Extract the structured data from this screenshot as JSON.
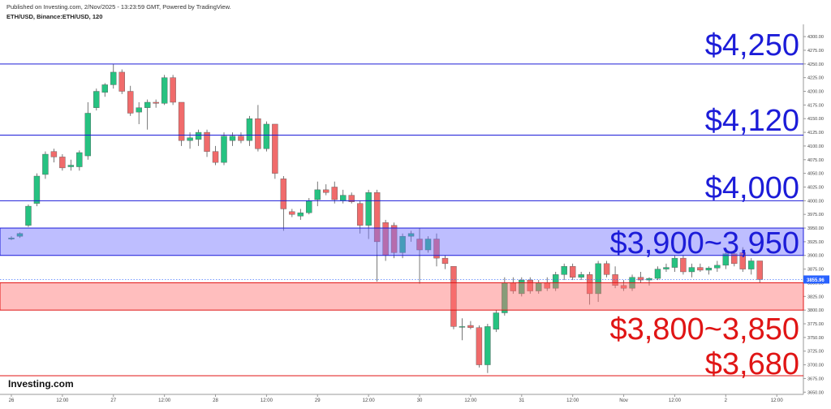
{
  "chart_data": {
    "type": "candlestick",
    "publisher": "Published on Investing.com, 2/Nov/2025 - 13:23:59 GMT, Powered by TradingView.",
    "title": "ETH/USD, Binance:ETH/USD, 120",
    "logo": "Investing.com",
    "categories": [
      "26",
      null,
      null,
      null,
      null,
      null,
      "12:00",
      null,
      null,
      null,
      null,
      null,
      "27",
      null,
      null,
      null,
      null,
      null,
      "12:00",
      null,
      null,
      null,
      null,
      null,
      "28",
      null,
      null,
      null,
      null,
      null,
      "12:00",
      null,
      null,
      null,
      null,
      null,
      "29",
      null,
      null,
      null,
      null,
      null,
      "12:00",
      null,
      null,
      null,
      null,
      null,
      "30",
      null,
      null,
      null,
      null,
      null,
      "12:00",
      null,
      null,
      null,
      null,
      null,
      "31",
      null,
      null,
      null,
      null,
      null,
      "12:00",
      null,
      null,
      null,
      null,
      null,
      "Nov",
      null,
      null,
      null,
      null,
      null,
      "12:00",
      null,
      null,
      null,
      null,
      null,
      "2",
      null,
      null,
      null,
      null,
      null,
      "12:00"
    ],
    "open": [
      3930,
      3935,
      3955,
      3995,
      4048,
      4090,
      4080,
      4062,
      4062,
      4082,
      4170,
      4198,
      4212,
      4235,
      4200,
      4162,
      4170,
      4180,
      4178,
      4225,
      4180,
      4110,
      4112,
      4125,
      4090,
      4070,
      4110,
      4118,
      4110,
      4150,
      4095,
      4140,
      4040,
      3980,
      3972,
      3978,
      4002,
      4020,
      4025,
      4000,
      4010,
      3995,
      3955,
      4015,
      3960,
      3955,
      3905,
      3935,
      3930,
      3910,
      3930,
      3895,
      3880,
      3770,
      3772,
      3768,
      3700,
      3765,
      3795,
      3850,
      3830,
      3855,
      3835,
      3850,
      3840,
      3865,
      3880,
      3860,
      3865,
      3830,
      3885,
      3865,
      3845,
      3840,
      3860,
      3855,
      3858,
      3875,
      3878,
      3895,
      3870,
      3878,
      3873,
      3877,
      3882,
      3903,
      3905,
      3875,
      3890,
      null,
      null
    ],
    "high": [
      3935,
      3942,
      3993,
      4050,
      4090,
      4095,
      4085,
      4075,
      4092,
      4180,
      4205,
      4215,
      4250,
      4240,
      4210,
      4180,
      4185,
      4185,
      4230,
      4230,
      4180,
      4125,
      4130,
      4130,
      4100,
      4125,
      4125,
      4125,
      4155,
      4175,
      4145,
      4140,
      4045,
      3985,
      3985,
      4005,
      4035,
      4030,
      4035,
      4020,
      4015,
      4000,
      4020,
      4020,
      3965,
      3960,
      3940,
      3945,
      3950,
      3935,
      3940,
      3900,
      3880,
      3785,
      3780,
      3772,
      3775,
      3800,
      3860,
      3860,
      3860,
      3860,
      3855,
      3860,
      3870,
      3885,
      3885,
      3870,
      3870,
      3890,
      3890,
      3880,
      3855,
      3865,
      3870,
      3860,
      3880,
      3885,
      3900,
      3900,
      3885,
      3885,
      3880,
      3890,
      3910,
      3910,
      3915,
      3895,
      3890,
      null,
      null
    ],
    "low": [
      3928,
      3932,
      3952,
      3990,
      4040,
      4070,
      4055,
      4055,
      4055,
      4075,
      4165,
      4190,
      4205,
      4195,
      4155,
      4140,
      4130,
      4170,
      4175,
      4175,
      4100,
      4095,
      4100,
      4080,
      4065,
      4065,
      4100,
      4105,
      4100,
      4090,
      4090,
      4040,
      3945,
      3970,
      3965,
      3975,
      3990,
      4010,
      3995,
      3995,
      3995,
      3940,
      3930,
      3852,
      3890,
      3895,
      3895,
      3925,
      3848,
      3905,
      3880,
      3875,
      3765,
      3745,
      3765,
      3695,
      3685,
      3760,
      3790,
      3830,
      3825,
      3830,
      3830,
      3835,
      3835,
      3855,
      3855,
      3855,
      3810,
      3815,
      3860,
      3840,
      3835,
      3835,
      3850,
      3845,
      3855,
      3870,
      3870,
      3865,
      3860,
      3870,
      3865,
      3870,
      3875,
      3880,
      3870,
      3865,
      3850,
      null,
      null
    ],
    "close": [
      3932,
      3940,
      3990,
      4045,
      4085,
      4080,
      4060,
      4065,
      4088,
      4160,
      4200,
      4212,
      4235,
      4200,
      4160,
      4170,
      4180,
      4178,
      4225,
      4180,
      4110,
      4115,
      4125,
      4090,
      4070,
      4118,
      4118,
      4110,
      4150,
      4095,
      4140,
      4050,
      3985,
      3975,
      3978,
      4000,
      4020,
      4015,
      4002,
      4010,
      3998,
      3955,
      4015,
      3925,
      3900,
      3905,
      3935,
      3940,
      3910,
      3930,
      3895,
      3885,
      3770,
      3770,
      3768,
      3700,
      3770,
      3795,
      3850,
      3835,
      3855,
      3835,
      3850,
      3840,
      3865,
      3880,
      3860,
      3865,
      3830,
      3885,
      3865,
      3845,
      3840,
      3860,
      3855,
      3858,
      3875,
      3878,
      3895,
      3870,
      3878,
      3873,
      3877,
      3882,
      3903,
      3885,
      3875,
      3890,
      3856,
      null,
      null
    ],
    "up_color": "#26c281",
    "down_color": "#f06b6b",
    "ylim": [
      3640,
      4315
    ],
    "yticks": [
      {
        "value": 3650,
        "label": "3650.00"
      },
      {
        "value": 3675,
        "label": "3675.00"
      },
      {
        "value": 3700,
        "label": "3700.00"
      },
      {
        "value": 3725,
        "label": "3725.00"
      },
      {
        "value": 3750,
        "label": "3750.00"
      },
      {
        "value": 3775,
        "label": "3775.00"
      },
      {
        "value": 3800,
        "label": "3800.00"
      },
      {
        "value": 3825,
        "label": "3825.00"
      },
      {
        "value": 3850,
        "label": "3850.00"
      },
      {
        "value": 3875,
        "label": "3875.00"
      },
      {
        "value": 3900,
        "label": "3900.00"
      },
      {
        "value": 3925,
        "label": "3925.00"
      },
      {
        "value": 3950,
        "label": "3950.00"
      },
      {
        "value": 3975,
        "label": "3975.00"
      },
      {
        "value": 4000,
        "label": "4000.00"
      },
      {
        "value": 4025,
        "label": "4025.00"
      },
      {
        "value": 4050,
        "label": "4050.00"
      },
      {
        "value": 4075,
        "label": "4075.00"
      },
      {
        "value": 4100,
        "label": "4100.00"
      },
      {
        "value": 4125,
        "label": "4125.00"
      },
      {
        "value": 4150,
        "label": "4150.00"
      },
      {
        "value": 4175,
        "label": "4175.00"
      },
      {
        "value": 4200,
        "label": "4200.00"
      },
      {
        "value": 4225,
        "label": "4225.00"
      },
      {
        "value": 4250,
        "label": "4250.00"
      },
      {
        "value": 4275,
        "label": "4275.00"
      },
      {
        "value": 4300,
        "label": "4300.00"
      }
    ],
    "last_price": 3855.96,
    "levels": [
      {
        "value": 4250,
        "label": "$4,250",
        "color": "#1c1cd8"
      },
      {
        "value": 4120,
        "label": "$4,120",
        "color": "#1c1cd8"
      },
      {
        "value": 4000,
        "label": "$4,000",
        "color": "#1c1cd8"
      },
      {
        "value": 3680,
        "label": "$3,680",
        "color": "#e01515"
      }
    ],
    "zones": [
      {
        "from": 3900,
        "to": 3950,
        "label": "$3,900~3,950",
        "color": "#1c1cd8",
        "fill": "rgba(110,110,255,0.45)"
      },
      {
        "from": 3800,
        "to": 3850,
        "label": "$3,800~3,850",
        "color": "#e01515",
        "fill": "rgba(255,110,110,0.45)"
      }
    ]
  }
}
